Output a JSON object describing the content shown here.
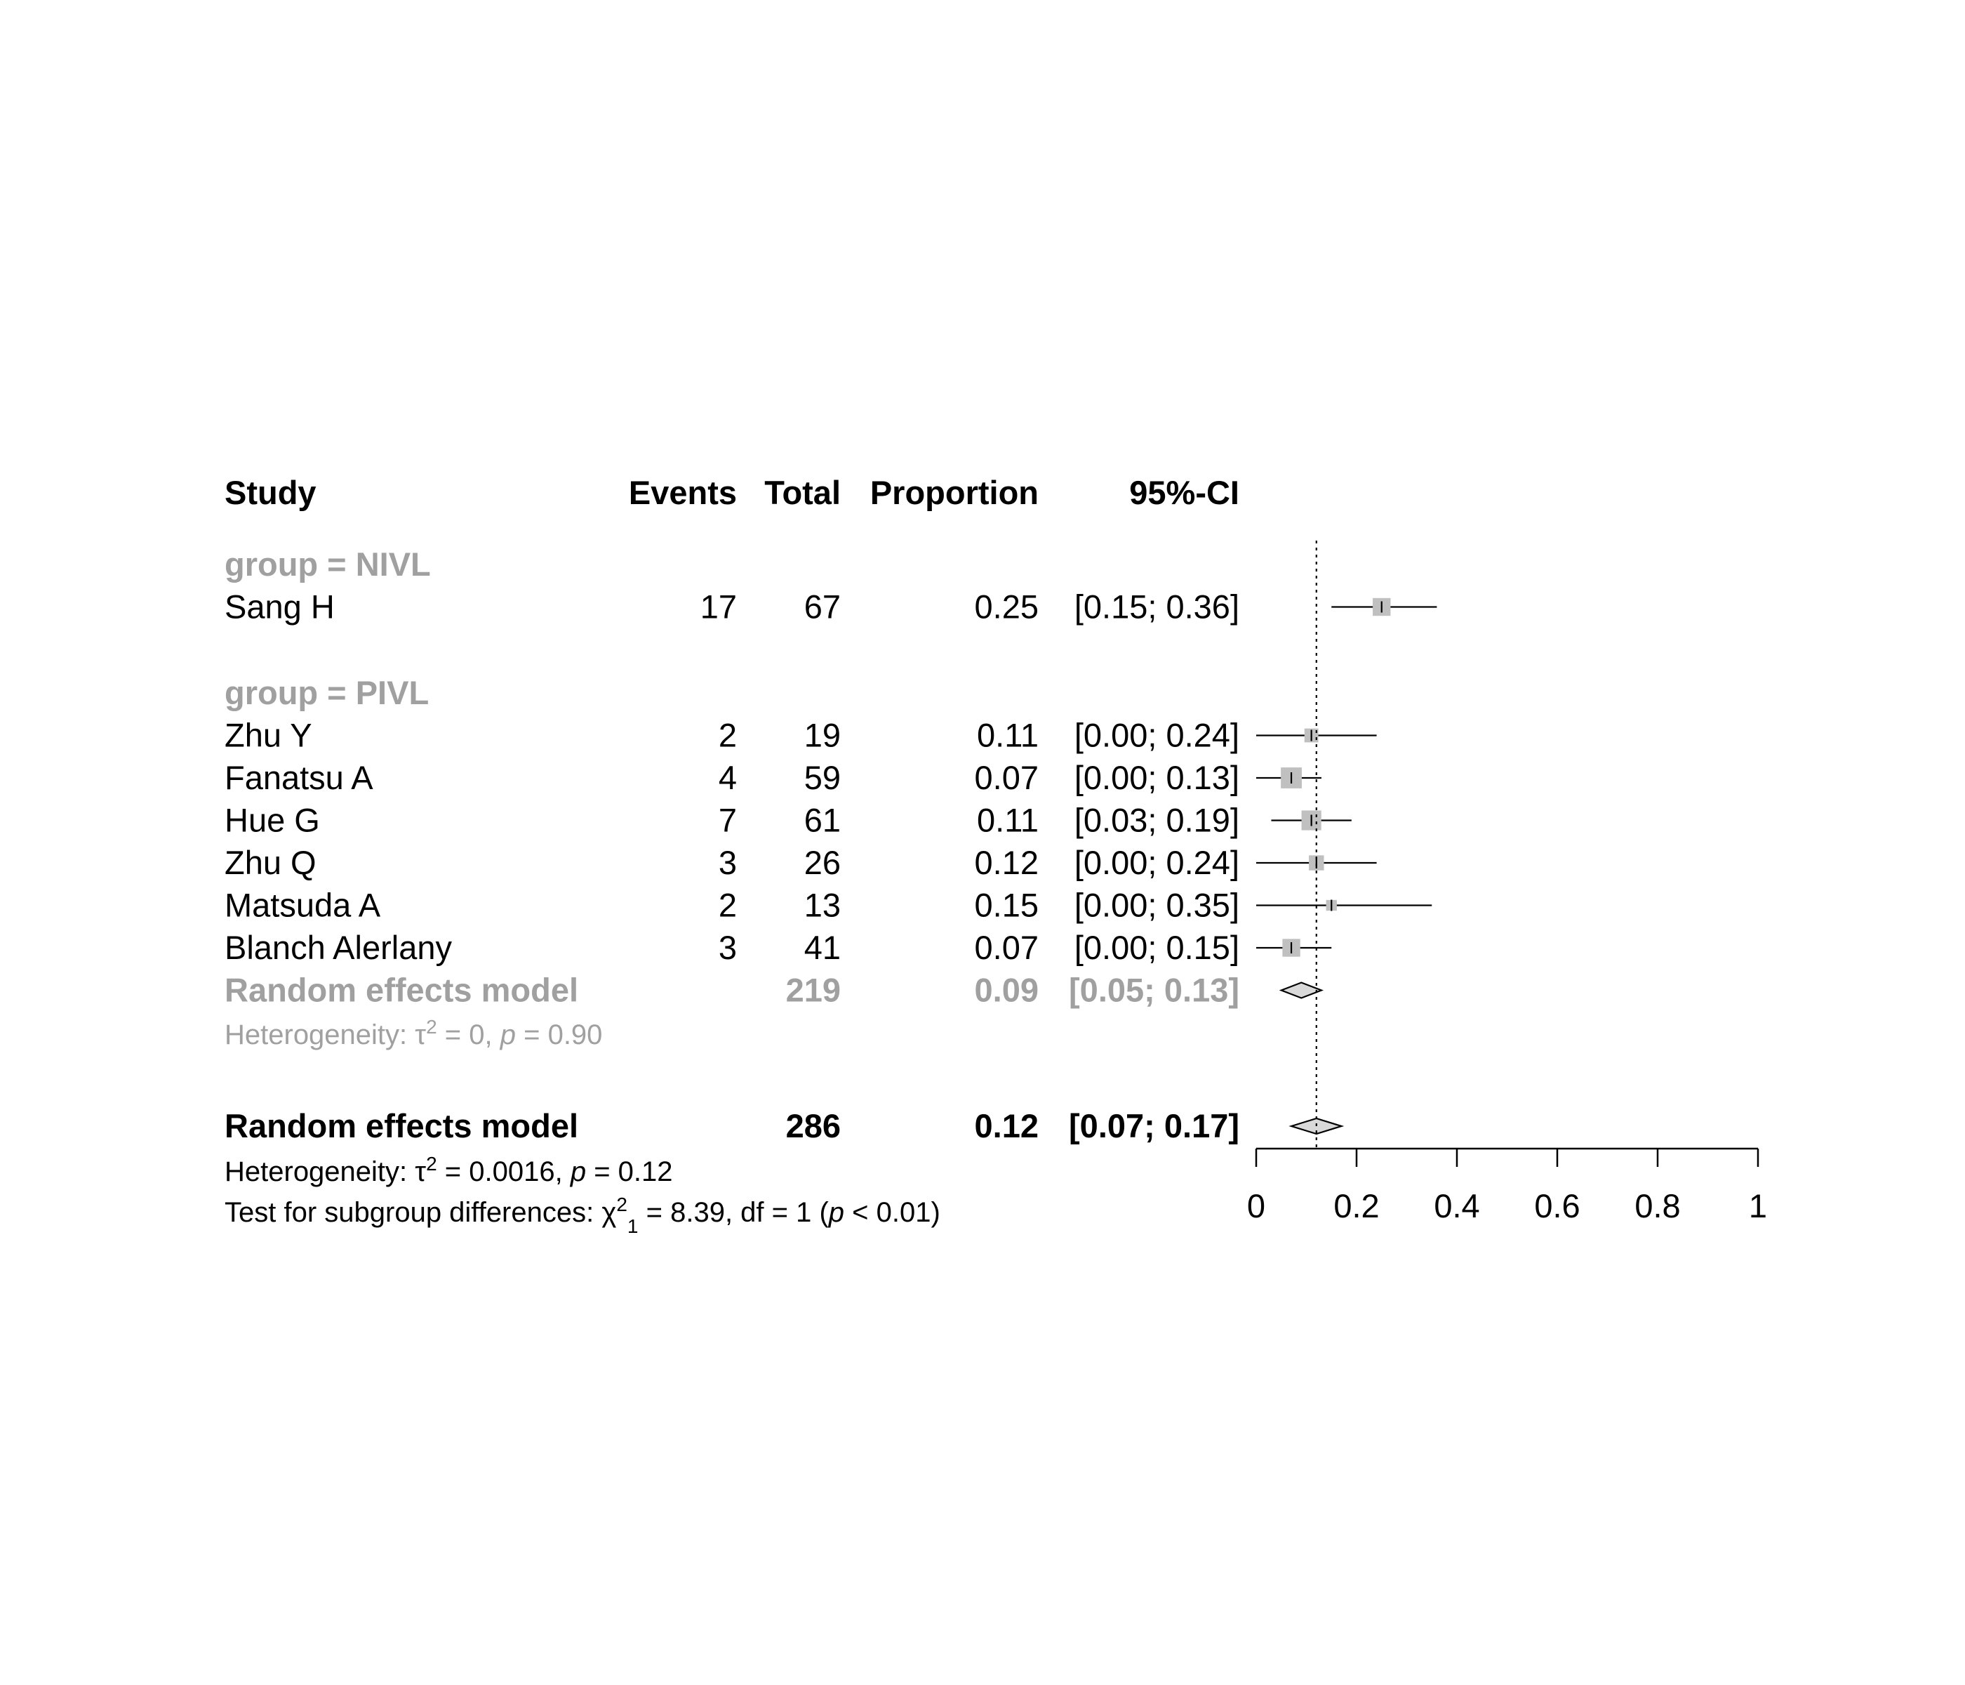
{
  "header": {
    "study": "Study",
    "events": "Events",
    "total": "Total",
    "proportion": "Proportion",
    "ci": "95%-CI"
  },
  "colors": {
    "text": "#000000",
    "subgroup_text": "#a0a0a0",
    "box_fill": "#c0c0c0",
    "diamond_fill": "#d9d9d9"
  },
  "chart_data": {
    "type": "forest",
    "xlim": [
      0,
      1
    ],
    "x_ticks": [
      "0",
      "0.2",
      "0.4",
      "0.6",
      "0.8",
      "1"
    ],
    "reference_line": 0.12,
    "groups": [
      {
        "label": "group = NIVL",
        "studies": [
          {
            "study": "Sang H",
            "events": "17",
            "total": "67",
            "proportion": "0.25",
            "ci": "[0.15; 0.36]",
            "est": 0.25,
            "lo": 0.15,
            "hi": 0.36,
            "weight": 0.62
          }
        ],
        "summary": null,
        "heterogeneity": null
      },
      {
        "label": "group = PIVL",
        "studies": [
          {
            "study": "Zhu Y",
            "events": "2",
            "total": "19",
            "proportion": "0.11",
            "ci": "[0.00; 0.24]",
            "est": 0.11,
            "lo": 0.0,
            "hi": 0.24,
            "weight": 0.42
          },
          {
            "study": "Fanatsu A",
            "events": "4",
            "total": "59",
            "proportion": "0.07",
            "ci": "[0.00; 0.13]",
            "est": 0.07,
            "lo": 0.0,
            "hi": 0.13,
            "weight": 0.78
          },
          {
            "study": "Hue G",
            "events": "7",
            "total": "61",
            "proportion": "0.11",
            "ci": "[0.03; 0.19]",
            "est": 0.11,
            "lo": 0.03,
            "hi": 0.19,
            "weight": 0.72
          },
          {
            "study": "Zhu Q",
            "events": "3",
            "total": "26",
            "proportion": "0.12",
            "ci": "[0.00; 0.24]",
            "est": 0.12,
            "lo": 0.0,
            "hi": 0.24,
            "weight": 0.48
          },
          {
            "study": "Matsuda A",
            "events": "2",
            "total": "13",
            "proportion": "0.15",
            "ci": "[0.00; 0.35]",
            "est": 0.15,
            "lo": 0.0,
            "hi": 0.35,
            "weight": 0.26
          },
          {
            "study": "Blanch Alerlany",
            "events": "3",
            "total": "41",
            "proportion": "0.07",
            "ci": "[0.00; 0.15]",
            "est": 0.07,
            "lo": 0.0,
            "hi": 0.15,
            "weight": 0.62
          }
        ],
        "summary": {
          "label": "Random effects model",
          "total": "219",
          "proportion": "0.09",
          "ci": "[0.05; 0.13]",
          "est": 0.09,
          "lo": 0.05,
          "hi": 0.13
        },
        "heterogeneity": {
          "prefix": "Heterogeneity: ",
          "tau": "τ",
          "sup": "2",
          "mid": " = 0, ",
          "p": "p",
          "rest": " = 0.90"
        }
      }
    ],
    "overall": {
      "label": "Random effects model",
      "total": "286",
      "proportion": "0.12",
      "ci": "[0.07; 0.17]",
      "est": 0.12,
      "lo": 0.07,
      "hi": 0.17,
      "heterogeneity": {
        "prefix": "Heterogeneity: ",
        "tau": "τ",
        "sup": "2",
        "mid": " = 0.0016, ",
        "p": "p",
        "rest": " = 0.12"
      },
      "subgroup_test": {
        "prefix": "Test for subgroup differences: ",
        "chi": "χ",
        "sup": "2",
        "sub": "1",
        "mid": " = 8.39, df = 1 (",
        "p": "p",
        "rest": " < 0.01)"
      }
    }
  }
}
